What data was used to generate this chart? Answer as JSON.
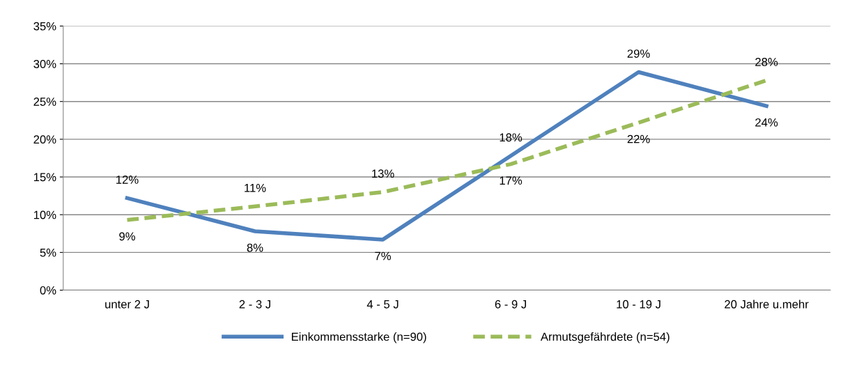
{
  "chart_data": {
    "type": "line",
    "categories": [
      "unter 2 J",
      "2 - 3 J",
      "4 - 5 J",
      "6 - 9 J",
      "10 - 19 J",
      "20 Jahre u.mehr"
    ],
    "series": [
      {
        "name": "Einkommensstarke (n=90)",
        "color": "#4f81bd",
        "line_style": "solid",
        "values": [
          12.2,
          7.8,
          6.7,
          17.8,
          28.9,
          24.4
        ],
        "value_labels": [
          "12%",
          "8%",
          "7%",
          "18%",
          "29%",
          "24%"
        ]
      },
      {
        "name": "Armutsgefährdete (n=54)",
        "color": "#9bbb59",
        "line_style": "dashed",
        "values": [
          9.3,
          11.1,
          13.0,
          16.7,
          22.2,
          27.8
        ],
        "value_labels": [
          "9%",
          "11%",
          "13%",
          "17%",
          "22%",
          "28%"
        ]
      }
    ],
    "ylim": [
      0,
      35
    ],
    "yticks": [
      {
        "value": 0,
        "label": "0%"
      },
      {
        "value": 5,
        "label": "5%"
      },
      {
        "value": 10,
        "label": "10%"
      },
      {
        "value": 15,
        "label": "15%"
      },
      {
        "value": 20,
        "label": "20%"
      },
      {
        "value": 25,
        "label": "25%"
      },
      {
        "value": 30,
        "label": "30%"
      },
      {
        "value": 35,
        "label": "35%"
      }
    ],
    "grid": "y",
    "legend": "bottom",
    "marker": "none"
  }
}
